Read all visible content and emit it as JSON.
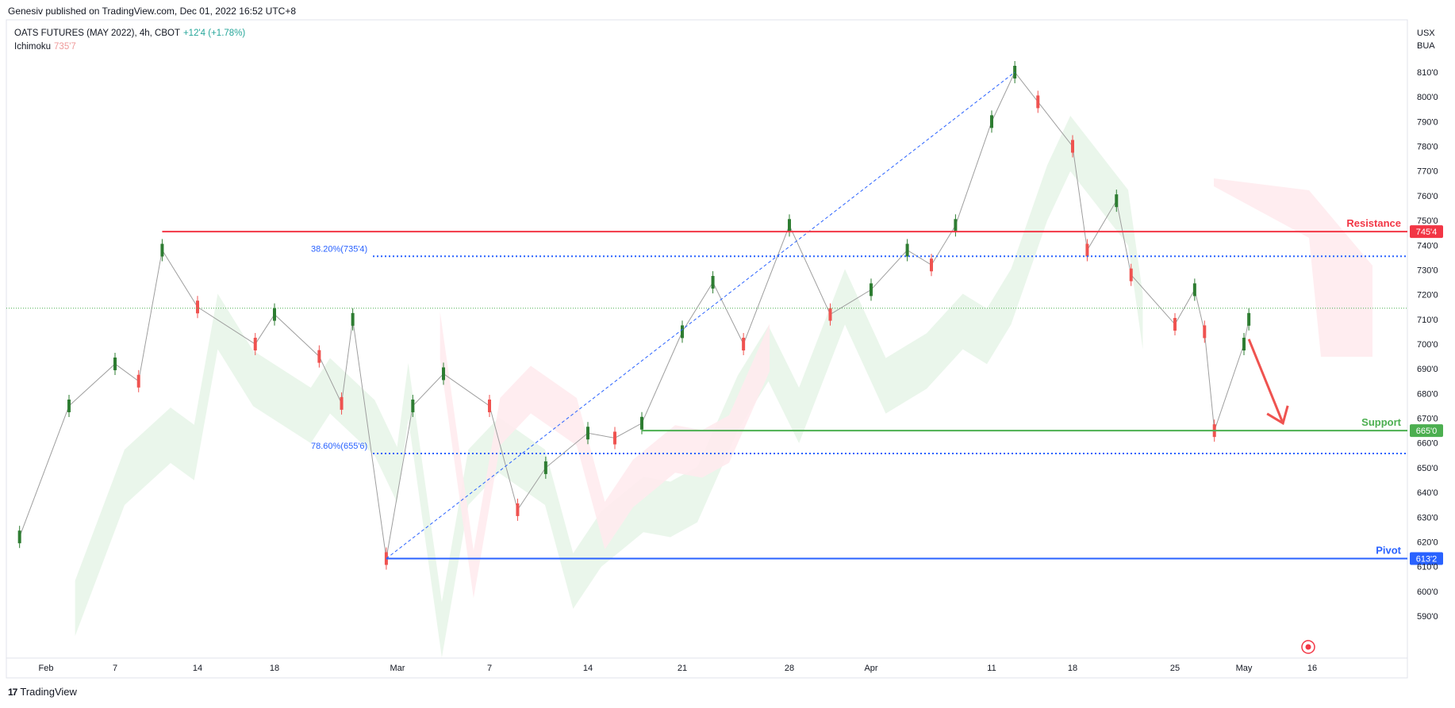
{
  "header": {
    "published": "Genesiv published on TradingView.com, Dec 01, 2022 16:52 UTC+8"
  },
  "legend": {
    "symbol": "OATS FUTURES (MAY 2022), 4h, CBOT",
    "change": "+12'4 (+1.78%)",
    "indicator": "Ichimoku",
    "indicator_value": "735'7"
  },
  "currency": {
    "line1": "USX",
    "line2": "BUA"
  },
  "footer": {
    "brand": "TradingView",
    "logo": "17"
  },
  "colors": {
    "up": "#26a69a",
    "up_candle": "#2e7d32",
    "down": "#ef5350",
    "resistance": "#f23645",
    "support": "#4caf50",
    "pivot": "#2962ff",
    "fib": "#2962ff",
    "cloud_bull": "#e8f5e9",
    "cloud_bear": "#ffebee"
  },
  "chart_data": {
    "type": "candlestick",
    "title": "OATS FUTURES (MAY 2022), 4h, CBOT",
    "ylim": [
      585,
      815
    ],
    "y_ticks": [
      "810'0",
      "800'0",
      "790'0",
      "780'0",
      "770'0",
      "760'0",
      "750'0",
      "740'0",
      "730'0",
      "720'0",
      "710'0",
      "700'0",
      "690'0",
      "680'0",
      "670'0",
      "660'0",
      "650'0",
      "640'0",
      "630'0",
      "620'0",
      "610'0",
      "600'0",
      "590'0"
    ],
    "y_tick_values": [
      810,
      800,
      790,
      780,
      770,
      760,
      750,
      740,
      730,
      720,
      710,
      700,
      690,
      680,
      670,
      660,
      650,
      640,
      630,
      620,
      610,
      600,
      590
    ],
    "x_ticks": [
      "Feb",
      "7",
      "14",
      "18",
      "Mar",
      "7",
      "14",
      "21",
      "28",
      "Apr",
      "11",
      "18",
      "25",
      "May",
      "16"
    ],
    "x_tick_dates": [
      "2022-02-01",
      "2022-02-07",
      "2022-02-14",
      "2022-02-18",
      "2022-03-01",
      "2022-03-07",
      "2022-03-14",
      "2022-03-21",
      "2022-03-28",
      "2022-04-01",
      "2022-04-11",
      "2022-04-18",
      "2022-04-25",
      "2022-05-02",
      "2022-05-16"
    ],
    "price_points": [
      [
        "2022-01-28",
        622
      ],
      [
        "2022-02-03",
        675
      ],
      [
        "2022-02-07",
        692
      ],
      [
        "2022-02-09",
        685
      ],
      [
        "2022-02-11",
        738
      ],
      [
        "2022-02-14",
        715
      ],
      [
        "2022-02-17",
        700
      ],
      [
        "2022-02-18",
        712
      ],
      [
        "2022-02-22",
        695
      ],
      [
        "2022-02-24",
        676
      ],
      [
        "2022-02-25",
        710
      ],
      [
        "2022-02-28",
        613.25
      ],
      [
        "2022-03-02",
        675
      ],
      [
        "2022-03-04",
        688
      ],
      [
        "2022-03-07",
        675
      ],
      [
        "2022-03-09",
        633
      ],
      [
        "2022-03-11",
        650
      ],
      [
        "2022-03-14",
        664
      ],
      [
        "2022-03-16",
        662
      ],
      [
        "2022-03-18",
        668
      ],
      [
        "2022-03-21",
        705
      ],
      [
        "2022-03-23",
        725
      ],
      [
        "2022-03-25",
        700
      ],
      [
        "2022-03-28",
        748
      ],
      [
        "2022-03-30",
        712
      ],
      [
        "2022-04-01",
        722
      ],
      [
        "2022-04-04",
        738
      ],
      [
        "2022-04-06",
        732
      ],
      [
        "2022-04-08",
        748
      ],
      [
        "2022-04-11",
        790
      ],
      [
        "2022-04-13",
        810
      ],
      [
        "2022-04-15",
        798
      ],
      [
        "2022-04-18",
        780
      ],
      [
        "2022-04-19",
        738
      ],
      [
        "2022-04-21",
        758
      ],
      [
        "2022-04-22",
        728
      ],
      [
        "2022-04-25",
        708
      ],
      [
        "2022-04-27",
        722
      ],
      [
        "2022-04-28",
        705
      ],
      [
        "2022-04-29",
        665
      ],
      [
        "2022-05-02",
        700
      ],
      [
        "2022-05-03",
        710
      ]
    ],
    "levels": [
      {
        "name": "Resistance",
        "value": 745.5,
        "tag": "745'4"
      },
      {
        "name": "Support",
        "value": 665,
        "tag": "665'0"
      },
      {
        "name": "Pivot",
        "value": 613.25,
        "tag": "613'2"
      }
    ],
    "fib_levels": [
      {
        "label": "38.20%(735'4)",
        "value": 735.5
      },
      {
        "label": "78.60%(655'6)",
        "value": 655.75
      }
    ],
    "current_price_line": 714.5,
    "forecast_arrow": {
      "from": [
        "2022-05-03",
        702
      ],
      "to": [
        "2022-05-10",
        668
      ]
    }
  }
}
